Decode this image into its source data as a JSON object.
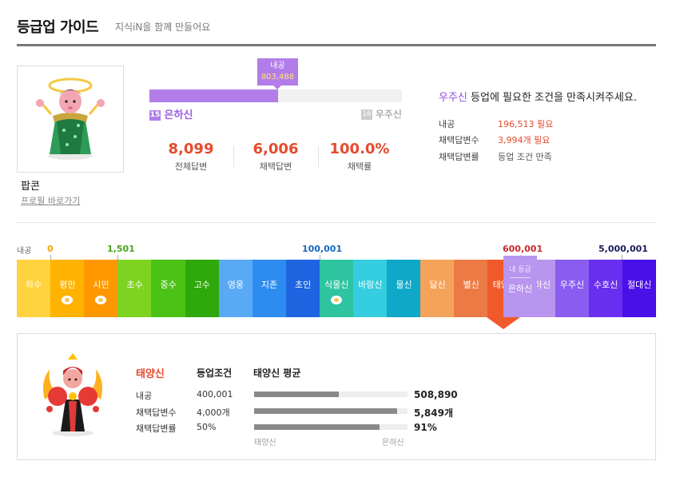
{
  "header": {
    "title": "등급업 가이드",
    "subtitle": "지식iN을 함께 만들어요"
  },
  "user": {
    "name": "팝콘",
    "profile_link": "프로필 바로가기"
  },
  "progress": {
    "tooltip_label": "내공",
    "tooltip_value": "803,488",
    "fill_fraction": 0.51,
    "current_level_num": "15",
    "current_level_name": "은하신",
    "next_level_num": "16",
    "next_level_name": "우주신"
  },
  "stats": [
    {
      "value": "8,099",
      "label": "전체답변"
    },
    {
      "value": "6,006",
      "label": "채택답변"
    },
    {
      "value": "100.0%",
      "label": "채택률"
    }
  ],
  "condition": {
    "target_grade": "우주신",
    "message": " 등업에 필요한 조건을 만족시켜주세요.",
    "rows": [
      {
        "label": "내공",
        "value": "196,513 필요",
        "style": "red"
      },
      {
        "label": "채택답변수",
        "value": "3,994개 필요",
        "style": "red"
      },
      {
        "label": "채택답변률",
        "value": "등업 조건 만족",
        "style": "gray"
      }
    ]
  },
  "grade_strip": {
    "point_label": "내공",
    "thresholds": [
      {
        "value": "0",
        "color": "#f5a800"
      },
      {
        "value": "1,501",
        "color": "#4aa51f"
      },
      {
        "value": "100,001",
        "color": "#1565c0"
      },
      {
        "value": "600,001",
        "color": "#c62828"
      },
      {
        "value": "5,000,001",
        "color": "#1a1a5e"
      }
    ],
    "grades": [
      {
        "name": "하수",
        "color": "#ffd23f",
        "egg": false
      },
      {
        "name": "평민",
        "color": "#ffb300",
        "egg": true
      },
      {
        "name": "시민",
        "color": "#ff9800",
        "egg": true
      },
      {
        "name": "초수",
        "color": "#7ed321",
        "egg": false
      },
      {
        "name": "중수",
        "color": "#4cc217",
        "egg": false
      },
      {
        "name": "고수",
        "color": "#2ea80a",
        "egg": false
      },
      {
        "name": "영웅",
        "color": "#5aa9f5",
        "egg": false
      },
      {
        "name": "지존",
        "color": "#2d8cf0",
        "egg": false
      },
      {
        "name": "초인",
        "color": "#1e64e0",
        "egg": false
      },
      {
        "name": "식물신",
        "color": "#2ec4a0",
        "egg": true
      },
      {
        "name": "바람신",
        "color": "#35cde0",
        "egg": false
      },
      {
        "name": "물신",
        "color": "#0fa8c8",
        "egg": false
      },
      {
        "name": "달신",
        "color": "#f5a35a",
        "egg": false
      },
      {
        "name": "별신",
        "color": "#ec7a45",
        "egg": false
      },
      {
        "name": "태양신",
        "color": "#f05a2a",
        "egg": false
      },
      {
        "name": "은하신",
        "color": "#b895ee",
        "egg": false
      },
      {
        "name": "우주신",
        "color": "#8a5cf0",
        "egg": false
      },
      {
        "name": "수호신",
        "color": "#6a2ef0",
        "egg": false
      },
      {
        "name": "절대신",
        "color": "#4a10e8",
        "egg": false
      }
    ],
    "current_badge": "내 등급",
    "current_name": "은하신"
  },
  "detail": {
    "grade": "태양신",
    "cond_header": "등업조건",
    "avg_header": "태양신 평균",
    "rows": [
      {
        "label": "내공",
        "cond": "400,001",
        "avg": "508,890",
        "fill": 0.55,
        "tick": 0.55
      },
      {
        "label": "채택답변수",
        "cond": "4,000개",
        "avg": "5,849개",
        "fill": 0.93,
        "tick": 0.93
      },
      {
        "label": "채택답변률",
        "cond": "50%",
        "avg": "91%",
        "fill": 0.82,
        "tick": 0.82
      }
    ],
    "axis_left": "태양신",
    "axis_right": "은하신"
  }
}
